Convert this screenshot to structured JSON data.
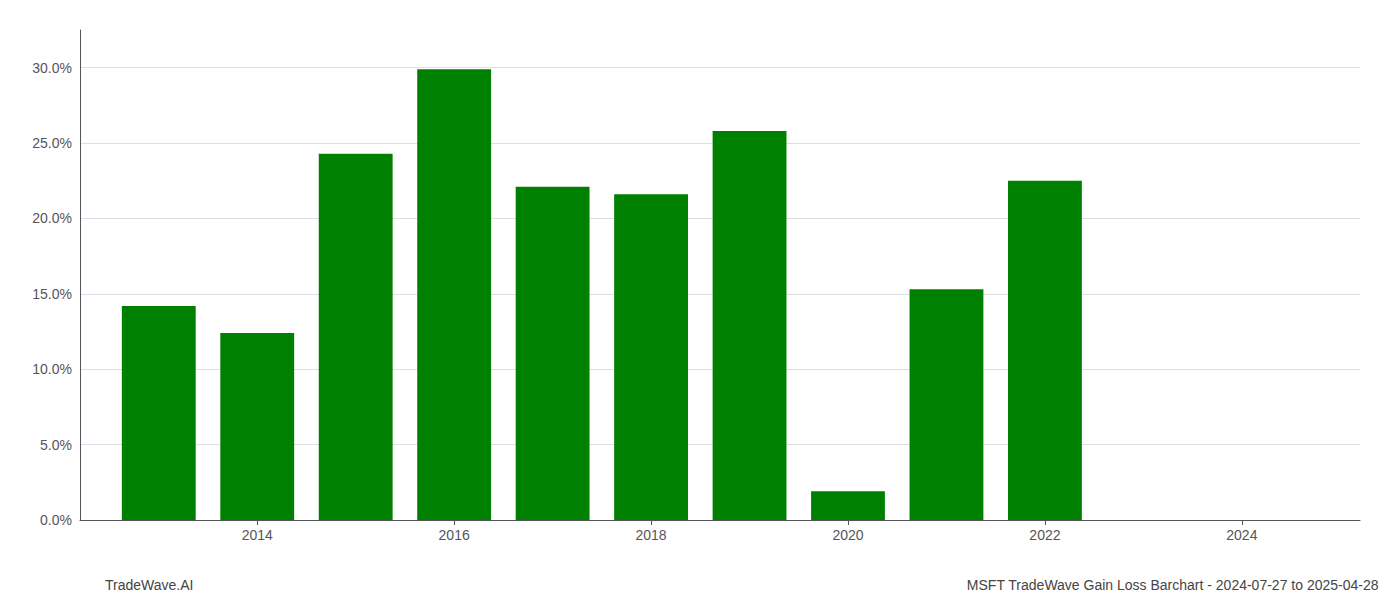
{
  "chart_data": {
    "type": "bar",
    "x": [
      2013,
      2014,
      2015,
      2016,
      2017,
      2018,
      2019,
      2020,
      2021,
      2022,
      2023
    ],
    "values": [
      0.142,
      0.124,
      0.243,
      0.299,
      0.221,
      0.216,
      0.258,
      0.019,
      0.153,
      0.225,
      0.0
    ],
    "color": "#008000",
    "xlim": [
      2012.2,
      2025.2
    ],
    "xticks": [
      2014,
      2016,
      2018,
      2020,
      2022,
      2024
    ],
    "ylim": [
      0,
      0.325
    ],
    "yticks": [
      {
        "value": 0.0,
        "label": "0.0%"
      },
      {
        "value": 0.05,
        "label": "5.0%"
      },
      {
        "value": 0.1,
        "label": "10.0%"
      },
      {
        "value": 0.15,
        "label": "15.0%"
      },
      {
        "value": 0.2,
        "label": "20.0%"
      },
      {
        "value": 0.25,
        "label": "25.0%"
      },
      {
        "value": 0.3,
        "label": "30.0%"
      }
    ],
    "grid": true,
    "annotations": [
      "TradeWave.AI",
      "MSFT TradeWave Gain Loss Barchart - 2024-07-27 to 2025-04-28"
    ]
  }
}
